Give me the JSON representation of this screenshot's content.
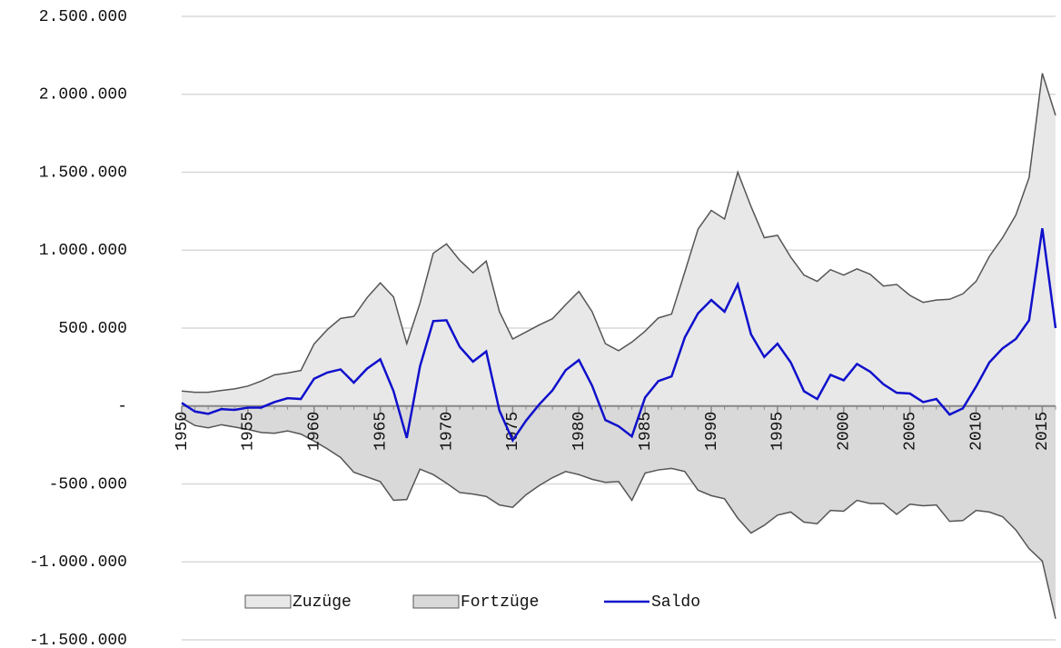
{
  "chart_data": {
    "type": "area",
    "x": [
      1950,
      1951,
      1952,
      1953,
      1954,
      1955,
      1956,
      1957,
      1958,
      1959,
      1960,
      1961,
      1962,
      1963,
      1964,
      1965,
      1966,
      1967,
      1968,
      1969,
      1970,
      1971,
      1972,
      1973,
      1974,
      1975,
      1976,
      1977,
      1978,
      1979,
      1980,
      1981,
      1982,
      1983,
      1984,
      1985,
      1986,
      1987,
      1988,
      1989,
      1990,
      1991,
      1992,
      1993,
      1994,
      1995,
      1996,
      1997,
      1998,
      1999,
      2000,
      2001,
      2002,
      2003,
      2004,
      2005,
      2006,
      2007,
      2008,
      2009,
      2010,
      2011,
      2012,
      2013,
      2014,
      2015,
      2016
    ],
    "series": [
      {
        "name": "Zuzüge",
        "kind": "area",
        "color": "#555555",
        "fill": "#e8e8e8",
        "values": [
          96000,
          88000,
          88000,
          100000,
          110000,
          128000,
          160000,
          200000,
          212000,
          228000,
          398000,
          490000,
          562000,
          575000,
          695000,
          790000,
          700000,
          400000,
          660000,
          980000,
          1040000,
          935000,
          855000,
          930000,
          605000,
          430000,
          475000,
          520000,
          560000,
          650000,
          735000,
          605000,
          400000,
          355000,
          410000,
          480000,
          565000,
          590000,
          860000,
          1135000,
          1255000,
          1200000,
          1500000,
          1280000,
          1080000,
          1095000,
          955000,
          840000,
          800000,
          875000,
          840000,
          880000,
          845000,
          770000,
          780000,
          710000,
          665000,
          680000,
          685000,
          720000,
          800000,
          960000,
          1080000,
          1225000,
          1465000,
          2135000,
          1865000
        ]
      },
      {
        "name": "Fortzüge",
        "kind": "area",
        "color": "#555555",
        "fill": "#d9d9d9",
        "values": [
          -76000,
          -125000,
          -140000,
          -120000,
          -135000,
          -150000,
          -170000,
          -175000,
          -160000,
          -180000,
          -225000,
          -275000,
          -330000,
          -425000,
          -455000,
          -485000,
          -605000,
          -600000,
          -405000,
          -440000,
          -495000,
          -555000,
          -565000,
          -580000,
          -635000,
          -650000,
          -570000,
          -510000,
          -460000,
          -420000,
          -440000,
          -470000,
          -490000,
          -485000,
          -605000,
          -430000,
          -410000,
          -400000,
          -420000,
          -540000,
          -575000,
          -595000,
          -720000,
          -815000,
          -765000,
          -700000,
          -680000,
          -745000,
          -755000,
          -670000,
          -675000,
          -605000,
          -625000,
          -625000,
          -695000,
          -630000,
          -640000,
          -635000,
          -740000,
          -735000,
          -670000,
          -680000,
          -710000,
          -795000,
          -915000,
          -995000,
          -1365000
        ]
      },
      {
        "name": "Saldo",
        "kind": "line",
        "color": "#1010cc",
        "values": [
          20000,
          -35000,
          -50000,
          -20000,
          -25000,
          -10000,
          -10000,
          25000,
          50000,
          45000,
          175000,
          215000,
          235000,
          150000,
          240000,
          300000,
          95000,
          -205000,
          255000,
          545000,
          550000,
          380000,
          285000,
          350000,
          -30000,
          -220000,
          -95000,
          10000,
          100000,
          230000,
          295000,
          130000,
          -90000,
          -130000,
          -195000,
          55000,
          160000,
          190000,
          440000,
          595000,
          680000,
          605000,
          780000,
          460000,
          315000,
          400000,
          280000,
          95000,
          45000,
          200000,
          165000,
          270000,
          220000,
          140000,
          85000,
          80000,
          25000,
          45000,
          -55000,
          -15000,
          125000,
          280000,
          370000,
          430000,
          550000,
          1140000,
          500000
        ]
      }
    ],
    "xlim": [
      1950,
      2016
    ],
    "xticks": [
      1950,
      1955,
      1960,
      1965,
      1970,
      1975,
      1980,
      1985,
      1990,
      1995,
      2000,
      2005,
      2010,
      2015
    ],
    "ylim": [
      -1500000,
      2500000
    ],
    "yticks": [
      {
        "value": -1500000,
        "label": "-1.500.000"
      },
      {
        "value": -1000000,
        "label": "-1.000.000"
      },
      {
        "value": -500000,
        "label": "-500.000"
      },
      {
        "value": 0,
        "label": "-"
      },
      {
        "value": 500000,
        "label": "500.000"
      },
      {
        "value": 1000000,
        "label": "1.000.000"
      },
      {
        "value": 1500000,
        "label": "1.500.000"
      },
      {
        "value": 2000000,
        "label": "2.000.000"
      },
      {
        "value": 2500000,
        "label": "2.500.000"
      }
    ],
    "grid": true,
    "legend": "bottom"
  }
}
